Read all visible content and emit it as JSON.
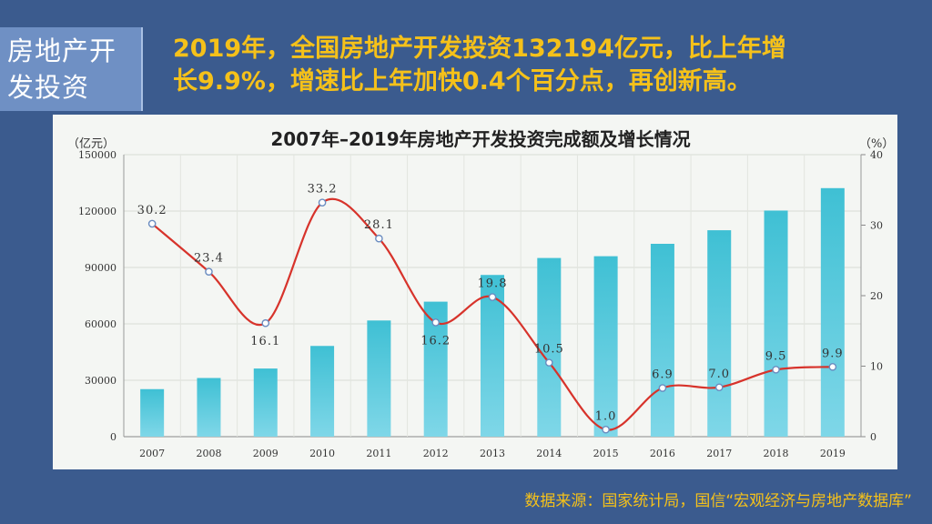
{
  "section_title": [
    "房地产开",
    "发投资"
  ],
  "headline": [
    "2019年，全国房地产开发投资132194亿元，比上年增",
    "长9.9%，增速比上年加快0.4个百分点，再创新高。"
  ],
  "source": "数据来源：国家统计局，国信“宏观经济与房地产数据库”",
  "colors": {
    "background": "#3b5b8e",
    "section_box": "#6f90c4",
    "headline": "#f5c11a",
    "bar": "#3fc0d4",
    "line": "#d7332b",
    "panel": "#f4f6f3"
  },
  "chart_data": {
    "type": "bar",
    "title": "2007年–2019年房地产开发投资完成额及增长情况",
    "ylabel_left": "（亿元）",
    "ylabel_right": "（%）",
    "categories": [
      "2007",
      "2008",
      "2009",
      "2010",
      "2011",
      "2012",
      "2013",
      "2014",
      "2015",
      "2016",
      "2017",
      "2018",
      "2019"
    ],
    "bar_values": [
      25280,
      31203,
      36242,
      48259,
      61797,
      71804,
      86013,
      95036,
      95979,
      102581,
      109799,
      120264,
      132194
    ],
    "line_values": [
      30.2,
      23.4,
      16.1,
      33.2,
      28.1,
      16.2,
      19.8,
      10.5,
      1.0,
      6.9,
      7.0,
      9.5,
      9.9
    ],
    "line_labels": [
      "30.2",
      "23.4",
      "16.1",
      "33.2",
      "28.1",
      "16.2",
      "19.8",
      "10.5",
      "1.0",
      "6.9",
      "7.0",
      "9.5",
      "9.9"
    ],
    "y_left": {
      "min": 0,
      "max": 150000,
      "ticks": [
        "0",
        "30000",
        "60000",
        "90000",
        "120000",
        "150000"
      ]
    },
    "y_right": {
      "min": 0,
      "max": 40,
      "ticks": [
        "0",
        "10",
        "20",
        "30",
        "40"
      ]
    },
    "grid": true
  }
}
